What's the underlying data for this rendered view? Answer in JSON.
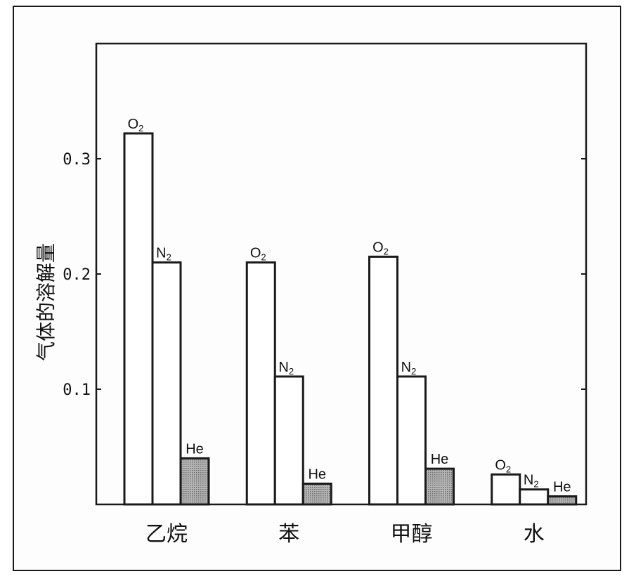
{
  "chart_data": {
    "type": "bar",
    "title": "",
    "xlabel": "",
    "ylabel": "气体的溶解量",
    "ylim": [
      0,
      0.4
    ],
    "yticks": [
      "0.1",
      "0.2",
      "0.3"
    ],
    "categories": [
      "乙烷",
      "苯",
      "甲醇",
      "水"
    ],
    "series": [
      {
        "name": "O₂",
        "label_main": "O",
        "label_sub": "2",
        "fill": "#ffffff",
        "values": [
          0.322,
          0.21,
          0.215,
          0.026
        ]
      },
      {
        "name": "N₂",
        "label_main": "N",
        "label_sub": "2",
        "fill": "#ffffff",
        "values": [
          0.21,
          0.111,
          0.111,
          0.013
        ]
      },
      {
        "name": "He",
        "label_main": "He",
        "label_sub": "",
        "fill": "#9a9a9a",
        "values": [
          0.04,
          0.018,
          0.031,
          0.007
        ]
      }
    ],
    "grid": false,
    "legend": "none"
  }
}
